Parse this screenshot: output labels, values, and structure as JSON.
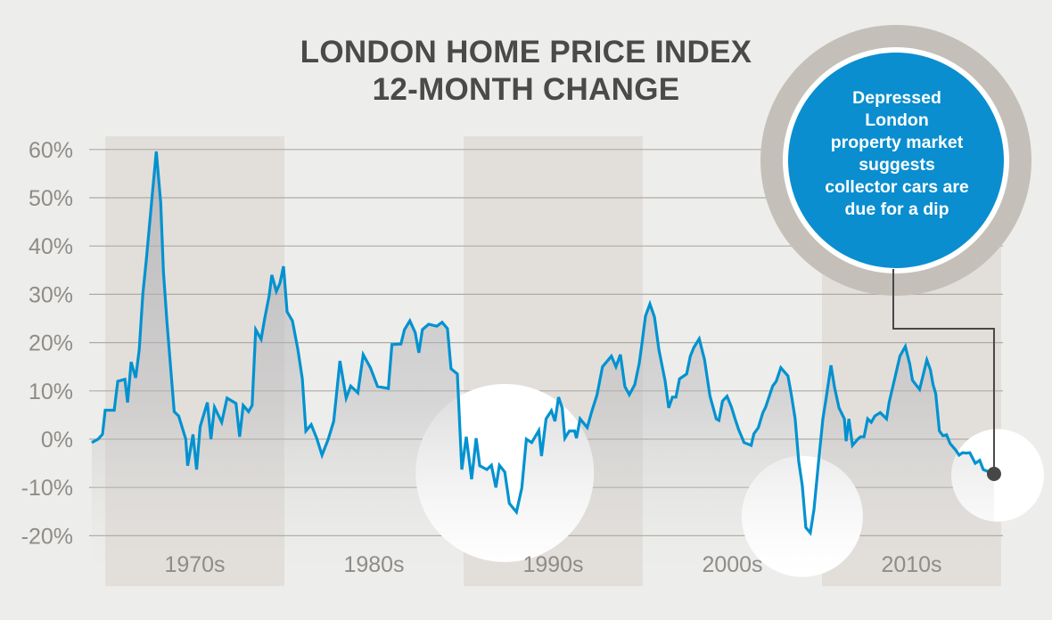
{
  "chart_data": {
    "type": "line",
    "title": [
      "LONDON HOME PRICE INDEX",
      "12-MONTH CHANGE"
    ],
    "xlabel": "",
    "ylabel": "",
    "ylim": [
      -20,
      60
    ],
    "xlim": [
      1969,
      2020
    ],
    "yticks": [
      60,
      50,
      40,
      30,
      20,
      10,
      0,
      -10,
      -20
    ],
    "ytick_labels": [
      "60%",
      "50%",
      "40%",
      "30%",
      "20%",
      "10%",
      "0%",
      "-10%",
      "-20%"
    ],
    "decades": [
      {
        "label": "1970s",
        "start": 1970,
        "shaded": true
      },
      {
        "label": "1980s",
        "start": 1980,
        "shaded": false
      },
      {
        "label": "1990s",
        "start": 1990,
        "shaded": true
      },
      {
        "label": "2000s",
        "start": 2000,
        "shaded": false
      },
      {
        "label": "2010s",
        "start": 2010,
        "shaded": true
      }
    ],
    "grid": true,
    "annotation": {
      "text": [
        "Depressed",
        "London",
        "property market",
        "suggests",
        "collector cars are",
        "due for a dip"
      ],
      "target": [
        2019.6,
        -7.2
      ]
    },
    "highlights": [
      [
        1992.3,
        -7
      ],
      [
        2008.9,
        -16
      ],
      [
        2019.8,
        -7.5
      ]
    ],
    "series": [
      {
        "name": "London home price index 12-month change (%)",
        "color": "#0092d0",
        "points": [
          [
            1969.25,
            -0.7
          ],
          [
            1969.6,
            0
          ],
          [
            1969.85,
            1
          ],
          [
            1970,
            6
          ],
          [
            1970.5,
            6
          ],
          [
            1970.7,
            12
          ],
          [
            1971.1,
            12.4
          ],
          [
            1971.25,
            7.6
          ],
          [
            1971.45,
            16
          ],
          [
            1971.7,
            12.7
          ],
          [
            1971.9,
            18.6
          ],
          [
            1972.1,
            30
          ],
          [
            1972.3,
            37.3
          ],
          [
            1972.6,
            49.6
          ],
          [
            1972.85,
            59.6
          ],
          [
            1973.1,
            48.9
          ],
          [
            1973.25,
            34.7
          ],
          [
            1973.45,
            24.2
          ],
          [
            1973.85,
            5.7
          ],
          [
            1974.1,
            4.8
          ],
          [
            1974.5,
            0
          ],
          [
            1974.6,
            -5.5
          ],
          [
            1974.9,
            1
          ],
          [
            1975.1,
            -6.3
          ],
          [
            1975.3,
            2.6
          ],
          [
            1975.7,
            7.6
          ],
          [
            1975.9,
            0
          ],
          [
            1976.1,
            6.6
          ],
          [
            1976.5,
            3.5
          ],
          [
            1976.8,
            8.5
          ],
          [
            1977.3,
            7.4
          ],
          [
            1977.5,
            0.5
          ],
          [
            1977.7,
            7
          ],
          [
            1978,
            5.7
          ],
          [
            1978.2,
            7
          ],
          [
            1978.4,
            22.7
          ],
          [
            1978.7,
            20.7
          ],
          [
            1978.9,
            25
          ],
          [
            1979.15,
            29.7
          ],
          [
            1979.3,
            34
          ],
          [
            1979.55,
            30.6
          ],
          [
            1979.75,
            32.3
          ],
          [
            1979.95,
            35.8
          ],
          [
            1980.15,
            26.4
          ],
          [
            1980.45,
            24.5
          ],
          [
            1980.75,
            18.6
          ],
          [
            1981,
            12.5
          ],
          [
            1981.2,
            1.7
          ],
          [
            1981.5,
            3
          ],
          [
            1981.8,
            0.2
          ],
          [
            1982.1,
            -3.3
          ],
          [
            1982.45,
            0
          ],
          [
            1982.75,
            3.7
          ],
          [
            1983.1,
            16.2
          ],
          [
            1983.45,
            8.5
          ],
          [
            1983.7,
            11
          ],
          [
            1984.1,
            9.6
          ],
          [
            1984.4,
            17.5
          ],
          [
            1984.8,
            14.8
          ],
          [
            1985.2,
            10.9
          ],
          [
            1985.8,
            10.5
          ],
          [
            1986,
            19.6
          ],
          [
            1986.5,
            19.7
          ],
          [
            1986.7,
            22.7
          ],
          [
            1987,
            24.5
          ],
          [
            1987.3,
            22.1
          ],
          [
            1987.5,
            17.9
          ],
          [
            1987.7,
            22.7
          ],
          [
            1988.05,
            23.8
          ],
          [
            1988.5,
            23.4
          ],
          [
            1988.8,
            24.2
          ],
          [
            1989.1,
            22.9
          ],
          [
            1989.3,
            14.6
          ],
          [
            1989.65,
            13.5
          ],
          [
            1989.9,
            -6.3
          ],
          [
            1990.15,
            0.5
          ],
          [
            1990.45,
            -8.3
          ],
          [
            1990.7,
            0.2
          ],
          [
            1990.9,
            -5.5
          ],
          [
            1991.3,
            -6.3
          ],
          [
            1991.55,
            -5.4
          ],
          [
            1991.8,
            -10
          ],
          [
            1992,
            -5.4
          ],
          [
            1992.3,
            -6.8
          ],
          [
            1992.55,
            -13.3
          ],
          [
            1992.95,
            -15.1
          ],
          [
            1993.25,
            -10.1
          ],
          [
            1993.5,
            0
          ],
          [
            1993.8,
            -0.7
          ],
          [
            1994.2,
            1.8
          ],
          [
            1994.35,
            -3.5
          ],
          [
            1994.6,
            4.2
          ],
          [
            1994.9,
            5.9
          ],
          [
            1995.1,
            3.7
          ],
          [
            1995.3,
            8.7
          ],
          [
            1995.5,
            6.5
          ],
          [
            1995.65,
            0.2
          ],
          [
            1995.9,
            1.7
          ],
          [
            1996.2,
            1.7
          ],
          [
            1996.3,
            0.2
          ],
          [
            1996.5,
            4.2
          ],
          [
            1996.9,
            2.4
          ],
          [
            1997.15,
            5.7
          ],
          [
            1997.45,
            9.2
          ],
          [
            1997.75,
            15
          ],
          [
            1998.25,
            17.2
          ],
          [
            1998.5,
            15
          ],
          [
            1998.75,
            17.5
          ],
          [
            1999,
            10.9
          ],
          [
            1999.25,
            9.2
          ],
          [
            1999.55,
            11.3
          ],
          [
            1999.8,
            15.7
          ],
          [
            1999.95,
            19.7
          ],
          [
            2000.15,
            25.5
          ],
          [
            2000.4,
            28
          ],
          [
            2000.65,
            25.3
          ],
          [
            2000.9,
            18.5
          ],
          [
            2001.25,
            12
          ],
          [
            2001.45,
            6.5
          ],
          [
            2001.65,
            8.7
          ],
          [
            2001.85,
            8.7
          ],
          [
            2002.05,
            12.5
          ],
          [
            2002.45,
            13.5
          ],
          [
            2002.65,
            17.2
          ],
          [
            2002.85,
            19
          ],
          [
            2003.15,
            20.8
          ],
          [
            2003.45,
            16.4
          ],
          [
            2003.75,
            8.9
          ],
          [
            2004.1,
            4.2
          ],
          [
            2004.25,
            3.9
          ],
          [
            2004.45,
            7.9
          ],
          [
            2004.7,
            8.9
          ],
          [
            2004.95,
            6.6
          ],
          [
            2005.15,
            4.2
          ],
          [
            2005.35,
            2
          ],
          [
            2005.65,
            -0.7
          ],
          [
            2006.05,
            -1.3
          ],
          [
            2006.2,
            1.1
          ],
          [
            2006.45,
            2.4
          ],
          [
            2006.7,
            5.5
          ],
          [
            2006.85,
            6.6
          ],
          [
            2007.25,
            11
          ],
          [
            2007.45,
            12
          ],
          [
            2007.7,
            14.8
          ],
          [
            2008.1,
            13.1
          ],
          [
            2008.3,
            9
          ],
          [
            2008.5,
            4.2
          ],
          [
            2008.7,
            -4.6
          ],
          [
            2008.9,
            -9.6
          ],
          [
            2009.1,
            -18.3
          ],
          [
            2009.35,
            -19.4
          ],
          [
            2009.55,
            -14.6
          ],
          [
            2009.8,
            -5
          ],
          [
            2010.05,
            4.2
          ],
          [
            2010.25,
            8.9
          ],
          [
            2010.5,
            15.3
          ],
          [
            2010.7,
            10.7
          ],
          [
            2010.95,
            6.5
          ],
          [
            2011.25,
            4.2
          ],
          [
            2011.35,
            -0.4
          ],
          [
            2011.5,
            4.2
          ],
          [
            2011.7,
            -1.3
          ],
          [
            2012,
            0
          ],
          [
            2012.15,
            0.5
          ],
          [
            2012.35,
            0.5
          ],
          [
            2012.55,
            4.2
          ],
          [
            2012.75,
            3.5
          ],
          [
            2012.95,
            4.8
          ],
          [
            2013.25,
            5.5
          ],
          [
            2013.6,
            4.2
          ],
          [
            2013.75,
            7.7
          ],
          [
            2014.05,
            12.4
          ],
          [
            2014.35,
            17.2
          ],
          [
            2014.65,
            19.2
          ],
          [
            2014.9,
            15.5
          ],
          [
            2015.05,
            12.2
          ],
          [
            2015.45,
            10.3
          ],
          [
            2015.85,
            16.4
          ],
          [
            2016.05,
            14.4
          ],
          [
            2016.2,
            11.3
          ],
          [
            2016.35,
            9.4
          ],
          [
            2016.55,
            1.7
          ],
          [
            2016.75,
            0.7
          ],
          [
            2016.95,
            0.9
          ],
          [
            2017.15,
            -0.9
          ],
          [
            2017.45,
            -2.2
          ],
          [
            2017.65,
            -3.3
          ],
          [
            2017.85,
            -2.8
          ],
          [
            2018.05,
            -2.9
          ],
          [
            2018.25,
            -2.8
          ],
          [
            2018.55,
            -5
          ],
          [
            2018.8,
            -4.4
          ],
          [
            2019,
            -6.3
          ],
          [
            2019.6,
            -7.2
          ]
        ]
      }
    ],
    "colors": {
      "background": "#ededeb",
      "band": "#e2dfdb",
      "line": "#0092d0",
      "callout": "#0a8ecf",
      "ring": "#c4c0b9",
      "marker": "#474747",
      "grid": "#aeaba5",
      "tick_text": "#8f8c88"
    }
  }
}
